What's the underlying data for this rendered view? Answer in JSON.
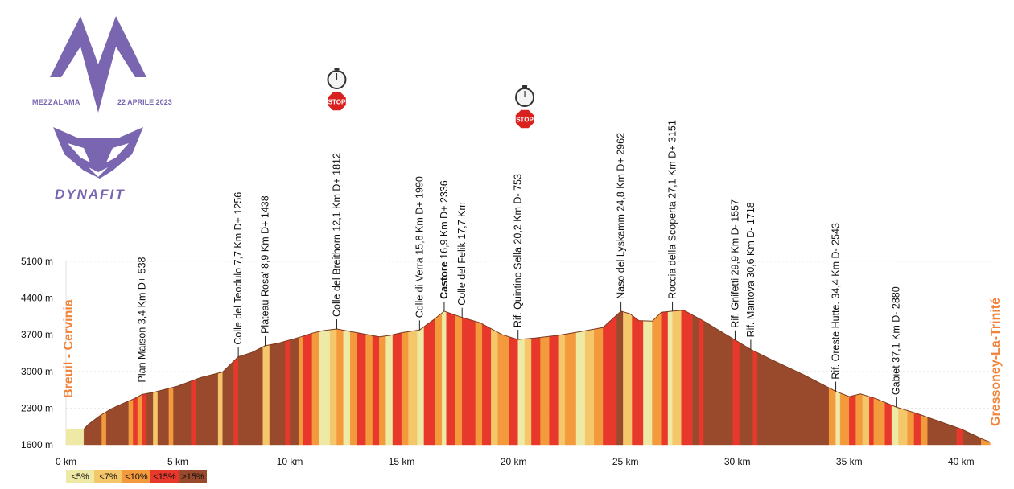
{
  "event": {
    "name": "MEZZALAMA",
    "date": "22 APRILE 2023",
    "sponsor": "DYNAFIT"
  },
  "start_label": "Breuil - Cervinia",
  "finish_label": "Gressoney-La-Trinité",
  "stop_text": "STOP",
  "colors": {
    "lt5": "#eee9a4",
    "lt7": "#f5c76b",
    "lt10": "#f29a3c",
    "lt15": "#e8382c",
    "gt15": "#9a4a2c",
    "logo": "#7a66b0",
    "label": "#f0823a"
  },
  "legend": [
    {
      "label": "<5%",
      "color_key": "lt5"
    },
    {
      "label": "<7%",
      "color_key": "lt7"
    },
    {
      "label": "<10%",
      "color_key": "lt10"
    },
    {
      "label": "<15%",
      "color_key": "lt15"
    },
    {
      "label": ">15%",
      "color_key": "gt15"
    }
  ],
  "chart_data": {
    "type": "area",
    "xlabel": "",
    "ylabel": "",
    "xlim": [
      0,
      41.5
    ],
    "ylim": [
      1600,
      5100
    ],
    "x_ticks": [
      {
        "v": 0,
        "label": "0 km"
      },
      {
        "v": 5,
        "label": "5 km"
      },
      {
        "v": 10,
        "label": "10 km"
      },
      {
        "v": 15,
        "label": "15 km"
      },
      {
        "v": 20,
        "label": "20 km"
      },
      {
        "v": 25,
        "label": "25 km"
      },
      {
        "v": 30,
        "label": "30 km"
      },
      {
        "v": 35,
        "label": "35 km"
      },
      {
        "v": 40,
        "label": "40 km"
      }
    ],
    "y_ticks": [
      {
        "v": 1600,
        "label": "1600 m"
      },
      {
        "v": 2300,
        "label": "2300 m"
      },
      {
        "v": 3000,
        "label": "3000 m"
      },
      {
        "v": 3700,
        "label": "3700 m"
      },
      {
        "v": 4400,
        "label": "4400 m"
      },
      {
        "v": 5100,
        "label": "5100 m"
      }
    ],
    "profile_x": [
      0,
      0.8,
      1,
      1.5,
      2,
      2.5,
      3,
      3.4,
      4,
      5,
      6,
      7,
      7.7,
      8.3,
      8.9,
      9.5,
      10,
      10.5,
      11,
      11.5,
      12.1,
      13,
      14,
      14.5,
      15,
      15.8,
      16.5,
      16.9,
      17.7,
      18.5,
      19.5,
      20.2,
      21,
      22,
      23,
      24,
      24.8,
      25.2,
      25.6,
      26.2,
      26.6,
      27.1,
      27.6,
      28.5,
      29.9,
      30.6,
      31.5,
      33,
      34.4,
      35,
      35.5,
      36.2,
      37.1,
      38,
      38.8,
      40,
      41,
      41.3
    ],
    "profile_y": [
      1900,
      1900,
      1990,
      2150,
      2280,
      2380,
      2470,
      2560,
      2610,
      2720,
      2880,
      2990,
      3280,
      3360,
      3490,
      3540,
      3600,
      3660,
      3730,
      3780,
      3810,
      3740,
      3660,
      3690,
      3740,
      3790,
      4010,
      4150,
      4030,
      3930,
      3700,
      3610,
      3640,
      3690,
      3760,
      3840,
      4150,
      4100,
      3970,
      3960,
      4130,
      4150,
      4170,
      3960,
      3600,
      3420,
      3230,
      2930,
      2620,
      2520,
      2570,
      2480,
      2320,
      2200,
      2080,
      1900,
      1700,
      1650
    ],
    "color_bands": [
      [
        0,
        0.8,
        "lt5"
      ],
      [
        0.8,
        1.6,
        "gt15"
      ],
      [
        1.6,
        1.8,
        "lt10"
      ],
      [
        1.8,
        2.8,
        "gt15"
      ],
      [
        2.8,
        3.0,
        "lt10"
      ],
      [
        3.0,
        3.2,
        "lt15"
      ],
      [
        3.2,
        3.4,
        "lt10"
      ],
      [
        3.4,
        3.6,
        "lt15"
      ],
      [
        3.6,
        3.9,
        "gt15"
      ],
      [
        3.9,
        4.1,
        "lt7"
      ],
      [
        4.1,
        4.6,
        "gt15"
      ],
      [
        4.6,
        4.8,
        "lt10"
      ],
      [
        4.8,
        5.6,
        "gt15"
      ],
      [
        5.6,
        5.8,
        "lt15"
      ],
      [
        5.8,
        6.8,
        "gt15"
      ],
      [
        6.8,
        7.0,
        "lt7"
      ],
      [
        7.0,
        7.5,
        "gt15"
      ],
      [
        7.5,
        7.7,
        "lt15"
      ],
      [
        7.7,
        8.8,
        "gt15"
      ],
      [
        8.8,
        9.1,
        "lt7"
      ],
      [
        9.1,
        9.8,
        "gt15"
      ],
      [
        9.8,
        10.0,
        "lt15"
      ],
      [
        10.0,
        10.4,
        "gt15"
      ],
      [
        10.4,
        10.6,
        "lt10"
      ],
      [
        10.6,
        11.0,
        "lt15"
      ],
      [
        11.0,
        11.3,
        "lt10"
      ],
      [
        11.3,
        11.8,
        "lt5"
      ],
      [
        11.8,
        12.1,
        "lt7"
      ],
      [
        12.1,
        12.4,
        "lt10"
      ],
      [
        12.4,
        12.7,
        "lt5"
      ],
      [
        12.7,
        13.0,
        "lt10"
      ],
      [
        13.0,
        13.4,
        "lt15"
      ],
      [
        13.4,
        13.7,
        "lt10"
      ],
      [
        13.7,
        14.0,
        "lt15"
      ],
      [
        14.0,
        14.3,
        "lt10"
      ],
      [
        14.3,
        14.6,
        "lt5"
      ],
      [
        14.6,
        15.0,
        "lt15"
      ],
      [
        15.0,
        15.3,
        "lt10"
      ],
      [
        15.3,
        15.7,
        "lt7"
      ],
      [
        15.7,
        16.0,
        "lt5"
      ],
      [
        16.0,
        16.5,
        "lt15"
      ],
      [
        16.5,
        16.8,
        "lt10"
      ],
      [
        16.8,
        17.0,
        "lt5"
      ],
      [
        17.0,
        17.4,
        "lt15"
      ],
      [
        17.4,
        17.7,
        "lt10"
      ],
      [
        17.7,
        18.3,
        "lt15"
      ],
      [
        18.3,
        18.6,
        "lt10"
      ],
      [
        18.6,
        19.0,
        "lt15"
      ],
      [
        19.0,
        19.3,
        "lt7"
      ],
      [
        19.3,
        19.8,
        "lt10"
      ],
      [
        19.8,
        20.2,
        "lt15"
      ],
      [
        20.2,
        20.5,
        "lt5"
      ],
      [
        20.5,
        20.8,
        "lt7"
      ],
      [
        20.8,
        21.2,
        "lt15"
      ],
      [
        21.2,
        21.6,
        "lt10"
      ],
      [
        21.6,
        22.0,
        "lt15"
      ],
      [
        22.0,
        22.3,
        "lt7"
      ],
      [
        22.3,
        22.8,
        "lt10"
      ],
      [
        22.8,
        23.2,
        "lt5"
      ],
      [
        23.2,
        23.6,
        "lt7"
      ],
      [
        23.6,
        24.0,
        "lt10"
      ],
      [
        24.0,
        24.6,
        "lt15"
      ],
      [
        24.6,
        24.9,
        "gt15"
      ],
      [
        24.9,
        25.3,
        "lt7"
      ],
      [
        25.3,
        25.8,
        "lt15"
      ],
      [
        25.8,
        26.2,
        "lt5"
      ],
      [
        26.2,
        26.6,
        "lt10"
      ],
      [
        26.6,
        26.9,
        "lt15"
      ],
      [
        26.9,
        27.1,
        "lt5"
      ],
      [
        27.1,
        27.5,
        "lt7"
      ],
      [
        27.5,
        28.0,
        "lt15"
      ],
      [
        28.0,
        28.3,
        "gt15"
      ],
      [
        28.3,
        28.5,
        "lt15"
      ],
      [
        28.5,
        29.8,
        "gt15"
      ],
      [
        29.8,
        30.1,
        "lt15"
      ],
      [
        30.1,
        30.7,
        "gt15"
      ],
      [
        30.7,
        30.9,
        "lt15"
      ],
      [
        30.9,
        34.1,
        "gt15"
      ],
      [
        34.1,
        34.4,
        "lt10"
      ],
      [
        34.4,
        34.6,
        "lt5"
      ],
      [
        34.6,
        35.0,
        "lt10"
      ],
      [
        35.0,
        35.3,
        "lt15"
      ],
      [
        35.3,
        35.6,
        "lt10"
      ],
      [
        35.6,
        35.9,
        "lt7"
      ],
      [
        35.9,
        36.1,
        "lt15"
      ],
      [
        36.1,
        36.6,
        "lt10"
      ],
      [
        36.6,
        36.9,
        "lt15"
      ],
      [
        36.9,
        37.2,
        "lt5"
      ],
      [
        37.2,
        37.6,
        "lt7"
      ],
      [
        37.6,
        37.9,
        "lt10"
      ],
      [
        37.9,
        38.2,
        "lt15"
      ],
      [
        38.2,
        38.5,
        "lt10"
      ],
      [
        38.5,
        39.8,
        "gt15"
      ],
      [
        39.8,
        40.1,
        "lt15"
      ],
      [
        40.1,
        40.9,
        "gt15"
      ],
      [
        40.9,
        41.3,
        "lt10"
      ]
    ],
    "waypoints": [
      {
        "x": 3.4,
        "y": 2560,
        "label": "Plan Maison  3,4 Km  D+ 538",
        "bold": false
      },
      {
        "x": 7.7,
        "y": 3280,
        "label": "Colle del Teodulo  7,7 Km  D+ 1256",
        "bold": false
      },
      {
        "x": 8.9,
        "y": 3490,
        "label": "Plateau Rosa'  8,9 Km  D+ 1438",
        "bold": false
      },
      {
        "x": 12.1,
        "y": 3810,
        "label": "Colle del Breithorn  12,1 Km  D+ 1812",
        "bold": false
      },
      {
        "x": 15.8,
        "y": 3790,
        "label": "Colle di Verra  15,8 Km  D+ 1990",
        "bold": false
      },
      {
        "x": 16.9,
        "y": 4150,
        "label": "Castore",
        "label2": "  16,9 Km  D+ 2336",
        "bold": true
      },
      {
        "x": 17.7,
        "y": 4030,
        "label": "Colle del Felik  17,7 Km",
        "bold": false
      },
      {
        "x": 20.2,
        "y": 3610,
        "label": "Rif. Quintino Sella  20,2 Km   D- 753",
        "bold": false
      },
      {
        "x": 24.8,
        "y": 4150,
        "label": "Naso del Lyskamm  24,8 Km  D+ 2962",
        "bold": false
      },
      {
        "x": 27.1,
        "y": 4150,
        "label": "Roccia della Scoperta  27,1 Km  D+ 3151",
        "bold": false
      },
      {
        "x": 29.9,
        "y": 3600,
        "label": "Rif. Gnifetti  29,9 Km  D- 1557",
        "bold": false
      },
      {
        "x": 30.6,
        "y": 3420,
        "label": "Rif. Mantova 30,6 Km  D- 1718",
        "bold": false
      },
      {
        "x": 34.4,
        "y": 2620,
        "label": "Rif. Oreste Hutte.  34,4 Km  D- 2543",
        "bold": false
      },
      {
        "x": 37.1,
        "y": 2320,
        "label": "Gabiet  37,1 Km  D- 2880",
        "bold": false
      }
    ],
    "time_barriers": [
      12.1,
      20.5
    ]
  }
}
